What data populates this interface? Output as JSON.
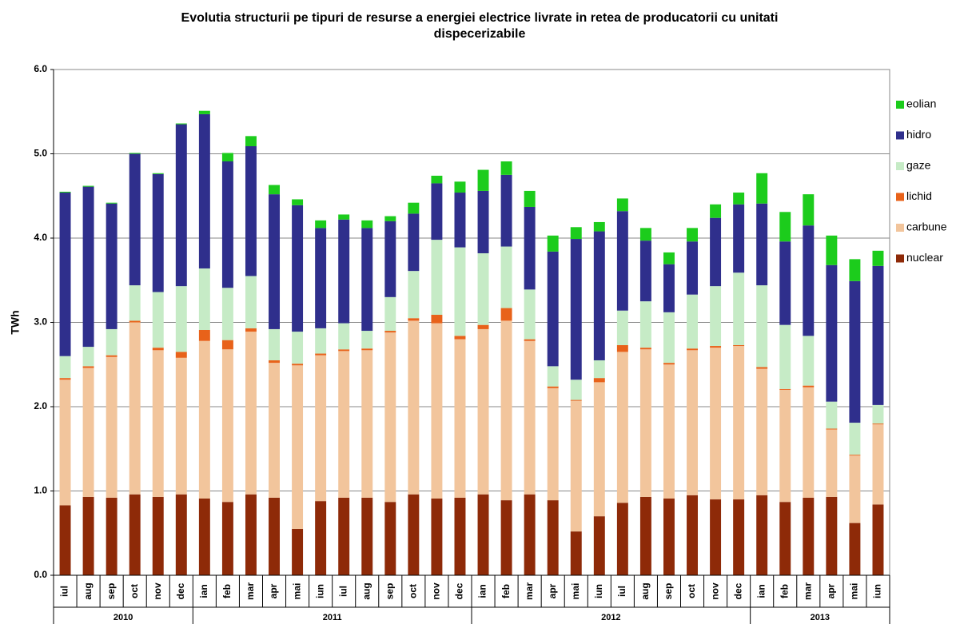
{
  "chart_data": {
    "type": "stacked_bar",
    "title": "Evolutia structurii pe tipuri de resurse a energiei electrice livrate in retea de producatorii cu unitati dispecerizabile",
    "y_label": "TWh",
    "categories": [
      "iul",
      "aug",
      "sep",
      "oct",
      "nov",
      "dec",
      "ian",
      "feb",
      "mar",
      "apr",
      "mai",
      "iun",
      "iul",
      "aug",
      "sep",
      "oct",
      "nov",
      "dec",
      "ian",
      "feb",
      "mar",
      "apr",
      "mai",
      "iun",
      "iul",
      "aug",
      "sep",
      "oct",
      "nov",
      "dec",
      "ian",
      "feb",
      "mar",
      "apr",
      "mai",
      "iun"
    ],
    "groups": [
      {
        "label": "2010",
        "span": 6
      },
      {
        "label": "2011",
        "span": 12
      },
      {
        "label": "2012",
        "span": 12
      },
      {
        "label": "2013",
        "span": 6
      }
    ],
    "series": [
      {
        "name": "nuclear",
        "color": "#8e2a08",
        "values": [
          0.83,
          0.93,
          0.92,
          0.96,
          0.93,
          0.96,
          0.91,
          0.87,
          0.96,
          0.92,
          0.55,
          0.88,
          0.92,
          0.92,
          0.87,
          0.96,
          0.91,
          0.92,
          0.96,
          0.89,
          0.96,
          0.89,
          0.52,
          0.7,
          0.86,
          0.93,
          0.91,
          0.95,
          0.9,
          0.9,
          0.95,
          0.87,
          0.92,
          0.93,
          0.62,
          0.84
        ]
      },
      {
        "name": "carbune",
        "color": "#f2c59c",
        "values": [
          1.49,
          1.53,
          1.67,
          2.04,
          1.74,
          1.62,
          1.87,
          1.81,
          1.93,
          1.6,
          1.94,
          1.73,
          1.74,
          1.75,
          2.01,
          2.06,
          2.08,
          1.88,
          1.96,
          2.13,
          1.82,
          1.33,
          1.55,
          1.59,
          1.79,
          1.75,
          1.59,
          1.72,
          1.8,
          1.82,
          1.5,
          1.33,
          1.31,
          0.8,
          0.8,
          0.95
        ]
      },
      {
        "name": "lichid",
        "color": "#e8621a",
        "values": [
          0.02,
          0.02,
          0.02,
          0.02,
          0.03,
          0.07,
          0.13,
          0.11,
          0.04,
          0.03,
          0.02,
          0.02,
          0.02,
          0.02,
          0.02,
          0.03,
          0.1,
          0.04,
          0.05,
          0.15,
          0.02,
          0.02,
          0.01,
          0.05,
          0.08,
          0.02,
          0.02,
          0.02,
          0.02,
          0.01,
          0.02,
          0.01,
          0.02,
          0.01,
          0.01,
          0.01
        ]
      },
      {
        "name": "gaze",
        "color": "#c6ebc6",
        "values": [
          0.26,
          0.23,
          0.31,
          0.42,
          0.66,
          0.78,
          0.73,
          0.62,
          0.62,
          0.37,
          0.38,
          0.3,
          0.31,
          0.21,
          0.4,
          0.56,
          0.89,
          1.05,
          0.85,
          0.73,
          0.59,
          0.24,
          0.24,
          0.21,
          0.41,
          0.55,
          0.6,
          0.64,
          0.71,
          0.86,
          0.97,
          0.76,
          0.59,
          0.32,
          0.38,
          0.22
        ]
      },
      {
        "name": "hidro",
        "color": "#2f2f8c",
        "values": [
          1.94,
          1.9,
          1.49,
          1.56,
          1.4,
          1.92,
          1.83,
          1.5,
          1.54,
          1.6,
          1.5,
          1.19,
          1.23,
          1.22,
          0.9,
          0.68,
          0.67,
          0.65,
          0.74,
          0.85,
          0.98,
          1.36,
          1.67,
          1.53,
          1.18,
          0.72,
          0.57,
          0.63,
          0.81,
          0.81,
          0.97,
          0.99,
          1.31,
          1.62,
          1.68,
          1.65
        ]
      },
      {
        "name": "eolian",
        "color": "#1ccc1c",
        "values": [
          0.01,
          0.01,
          0.01,
          0.01,
          0.01,
          0.01,
          0.04,
          0.1,
          0.12,
          0.11,
          0.07,
          0.09,
          0.06,
          0.09,
          0.06,
          0.13,
          0.09,
          0.13,
          0.25,
          0.16,
          0.19,
          0.19,
          0.14,
          0.11,
          0.15,
          0.15,
          0.14,
          0.16,
          0.16,
          0.14,
          0.36,
          0.35,
          0.37,
          0.35,
          0.26,
          0.18
        ]
      }
    ],
    "ylim": [
      0,
      6
    ],
    "yticks": [
      {
        "value": 0,
        "label": "0.0"
      },
      {
        "value": 1,
        "label": "1.0"
      },
      {
        "value": 2,
        "label": "2.0"
      },
      {
        "value": 3,
        "label": "3.0"
      },
      {
        "value": 4,
        "label": "4.0"
      },
      {
        "value": 5,
        "label": "5.0"
      },
      {
        "value": 6,
        "label": "6.0"
      }
    ],
    "grid": true,
    "legend": "right"
  }
}
